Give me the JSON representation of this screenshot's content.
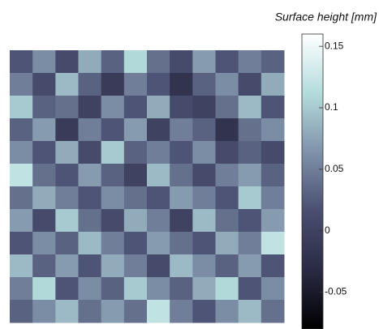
{
  "chart_data": {
    "type": "heatmap",
    "colorbar_title": "Surface height [mm]",
    "clim": [
      -0.08,
      0.16
    ],
    "cticks": [
      0.15,
      0.1,
      0.05,
      0,
      -0.05
    ],
    "colormap": [
      "#000000",
      "#2a2a44",
      "#4a4e70",
      "#7f92aa",
      "#b4dcdc",
      "#ffffff"
    ],
    "z": [
      [
        0.02,
        0.06,
        0.01,
        0.08,
        0.03,
        0.11,
        0.04,
        0.01,
        0.07,
        0.02,
        0.05,
        0.03
      ],
      [
        0.05,
        0.01,
        0.09,
        0.03,
        -0.01,
        0.05,
        0.02,
        -0.02,
        0.03,
        0.06,
        0.01,
        0.08
      ],
      [
        0.1,
        0.03,
        0.04,
        0.0,
        0.06,
        0.02,
        0.08,
        0.01,
        0.0,
        0.04,
        0.09,
        0.02
      ],
      [
        0.03,
        0.07,
        -0.01,
        0.05,
        0.02,
        0.07,
        0.0,
        0.05,
        0.03,
        -0.02,
        0.04,
        0.06
      ],
      [
        0.06,
        0.02,
        0.08,
        0.01,
        0.1,
        0.03,
        0.05,
        0.02,
        0.06,
        0.01,
        0.03,
        0.01
      ],
      [
        0.12,
        0.04,
        0.02,
        0.07,
        0.03,
        0.0,
        0.09,
        0.04,
        0.01,
        0.05,
        0.07,
        0.03
      ],
      [
        0.04,
        0.08,
        0.05,
        0.02,
        0.06,
        0.04,
        0.02,
        0.07,
        0.05,
        0.02,
        0.1,
        0.05
      ],
      [
        0.07,
        0.01,
        0.1,
        0.04,
        0.01,
        0.08,
        0.05,
        0.0,
        0.09,
        0.04,
        0.02,
        0.07
      ],
      [
        0.02,
        0.06,
        0.03,
        0.09,
        0.05,
        0.02,
        0.07,
        0.04,
        0.02,
        0.08,
        0.05,
        0.12
      ],
      [
        0.09,
        0.03,
        0.07,
        0.02,
        0.08,
        0.05,
        0.01,
        0.09,
        0.06,
        0.03,
        0.07,
        0.02
      ],
      [
        0.05,
        0.11,
        0.02,
        0.06,
        0.03,
        0.1,
        0.06,
        0.03,
        0.08,
        0.11,
        0.02,
        0.06
      ],
      [
        0.03,
        0.06,
        0.09,
        0.04,
        0.07,
        0.04,
        0.12,
        0.05,
        0.02,
        0.06,
        0.09,
        0.04
      ]
    ]
  }
}
